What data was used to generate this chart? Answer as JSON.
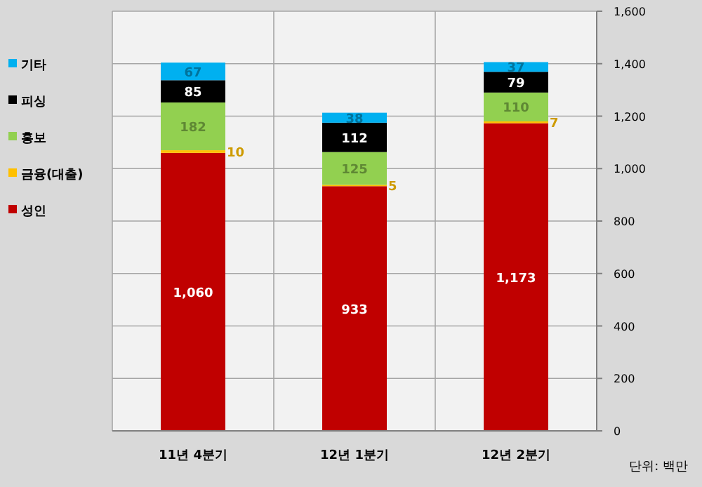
{
  "chart_data": {
    "type": "bar",
    "stacked": true,
    "categories": [
      "11년 4분기",
      "12년 1분기",
      "12년 2분기"
    ],
    "series": [
      {
        "name": "성인",
        "color": "#c00000",
        "values": [
          1060,
          933,
          1173
        ],
        "value_labels": [
          "1,060",
          "933",
          "1,173"
        ]
      },
      {
        "name": "금융(대출)",
        "color": "#ffc000",
        "values": [
          10,
          5,
          7
        ],
        "value_labels": [
          "10",
          "5",
          "7"
        ]
      },
      {
        "name": "홍보",
        "color": "#92d050",
        "values": [
          182,
          125,
          110
        ],
        "value_labels": [
          "182",
          "125",
          "110"
        ]
      },
      {
        "name": "피싱",
        "color": "#000000",
        "values": [
          85,
          112,
          79
        ],
        "value_labels": [
          "85",
          "112",
          "79"
        ]
      },
      {
        "name": "기타",
        "color": "#00b0f0",
        "values": [
          67,
          38,
          37
        ],
        "value_labels": [
          "67",
          "38",
          "37"
        ]
      }
    ],
    "ylim": [
      0,
      1600
    ],
    "yticks": [
      0,
      {
        "value": 200,
        "label": "200"
      },
      {
        "value": 400,
        "label": "400"
      },
      {
        "value": 600,
        "label": "600"
      },
      {
        "value": 800,
        "label": "800"
      },
      {
        "value": 1000,
        "label": "1,000"
      },
      {
        "value": 1200,
        "label": "1,200"
      },
      {
        "value": 1400,
        "label": "1,400"
      },
      {
        "value": 1600,
        "label": "1,600"
      }
    ],
    "grid": "y",
    "legend": "left",
    "annotations": [
      "단위: 백만"
    ]
  }
}
